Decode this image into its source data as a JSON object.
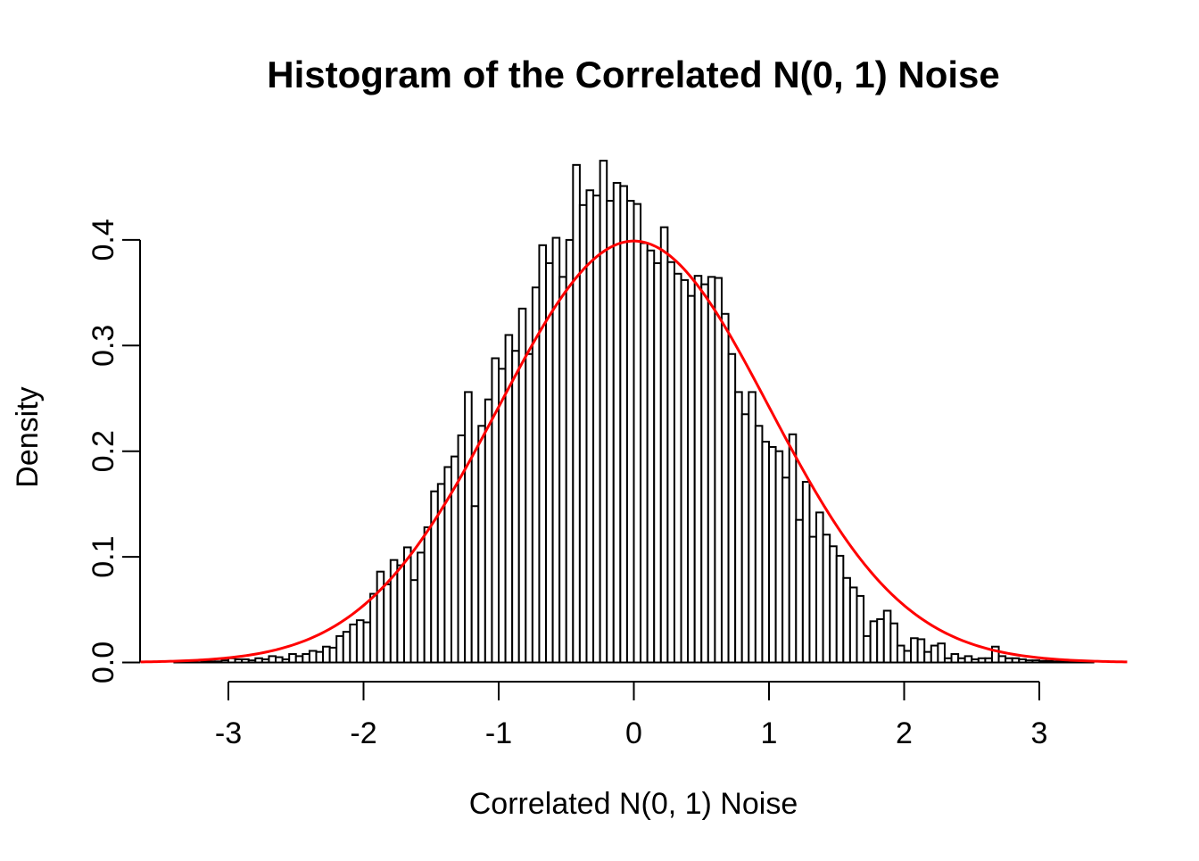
{
  "chart_data": {
    "type": "histogram",
    "title": "Histogram of the Correlated N(0, 1) Noise",
    "xlabel": "Correlated N(0, 1) Noise",
    "ylabel": "Density",
    "x_tick_values": [
      -3,
      -2,
      -1,
      0,
      1,
      2,
      3
    ],
    "x_tick_labels": [
      "-3",
      "-2",
      "-1",
      "0",
      "1",
      "2",
      "3"
    ],
    "y_tick_values": [
      0.0,
      0.1,
      0.2,
      0.3,
      0.4
    ],
    "y_tick_labels": [
      "0.0",
      "0.1",
      "0.2",
      "0.3",
      "0.4"
    ],
    "xlim": [
      -3.67,
      3.67
    ],
    "ylim": [
      0,
      0.475
    ],
    "grid": false,
    "legend": "none",
    "bar_fill_color": "#ffffff",
    "bar_stroke_color": "#000000",
    "curve_color": "#ff0000",
    "bin_width": 0.05,
    "bin_start": -3.4,
    "densities": [
      0.0005,
      0.001,
      0.001,
      0.002,
      0.001,
      0.001,
      0.001,
      0.002,
      0.004,
      0.003,
      0.003,
      0.002,
      0.004,
      0.003,
      0.006,
      0.005,
      0.003,
      0.008,
      0.006,
      0.008,
      0.011,
      0.01,
      0.015,
      0.014,
      0.025,
      0.029,
      0.036,
      0.04,
      0.038,
      0.065,
      0.086,
      0.074,
      0.097,
      0.092,
      0.109,
      0.078,
      0.104,
      0.128,
      0.162,
      0.169,
      0.185,
      0.195,
      0.215,
      0.256,
      0.148,
      0.224,
      0.249,
      0.288,
      0.278,
      0.31,
      0.295,
      0.335,
      0.292,
      0.355,
      0.395,
      0.378,
      0.402,
      0.365,
      0.4,
      0.471,
      0.433,
      0.447,
      0.442,
      0.475,
      0.437,
      0.454,
      0.451,
      0.437,
      0.434,
      0.397,
      0.39,
      0.378,
      0.412,
      0.379,
      0.368,
      0.362,
      0.347,
      0.366,
      0.358,
      0.365,
      0.364,
      0.33,
      0.292,
      0.256,
      0.235,
      0.256,
      0.224,
      0.209,
      0.204,
      0.2,
      0.175,
      0.216,
      0.135,
      0.171,
      0.119,
      0.142,
      0.121,
      0.11,
      0.101,
      0.08,
      0.071,
      0.063,
      0.025,
      0.039,
      0.041,
      0.049,
      0.037,
      0.016,
      0.011,
      0.023,
      0.022,
      0.01,
      0.016,
      0.018,
      0.004,
      0.008,
      0.004,
      0.006,
      0.003,
      0.004,
      0.004,
      0.015,
      0.006,
      0.004,
      0.004,
      0.003,
      0.002,
      0.002,
      0.0015,
      0.0015,
      0.001,
      0.001,
      0.001,
      0.001,
      0.0005,
      0.0005
    ],
    "overlay_curve": {
      "name": "standard normal density",
      "mean": 0,
      "sd": 1,
      "peak_density": 0.4,
      "x_range": [
        -3.65,
        3.65
      ]
    }
  }
}
